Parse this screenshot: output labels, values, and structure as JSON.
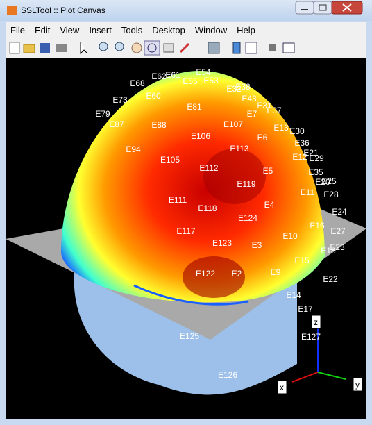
{
  "window": {
    "title": "SSLTool :: Plot Canvas"
  },
  "menu": [
    "File",
    "Edit",
    "View",
    "Insert",
    "Tools",
    "Desktop",
    "Window",
    "Help"
  ],
  "electrodes": [
    "E54",
    "E61",
    "E62",
    "E53",
    "E55",
    "E68",
    "E32",
    "E38",
    "E60",
    "E43",
    "E73",
    "E81",
    "E31",
    "E37",
    "E7",
    "E79",
    "E87",
    "E88",
    "E107",
    "E13",
    "E30",
    "E106",
    "E6",
    "E36",
    "E94",
    "E113",
    "E21",
    "E12",
    "E29",
    "E105",
    "E112",
    "E5",
    "E35",
    "E119",
    "E20",
    "E25",
    "E11",
    "E28",
    "E111",
    "E118",
    "E4",
    "E24",
    "E124",
    "E16",
    "E27",
    "E117",
    "E123",
    "E3",
    "E10",
    "E23",
    "E18",
    "E15",
    "E122",
    "E2",
    "E9",
    "E22",
    "E14",
    "E17",
    "E125",
    "E127",
    "E126"
  ],
  "axes": {
    "x": "x",
    "y": "y",
    "z": "z"
  }
}
